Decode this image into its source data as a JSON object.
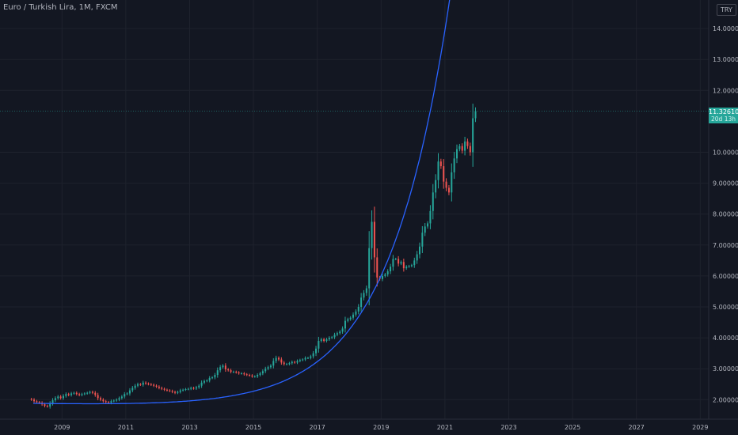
{
  "chart_title": "Euro / Turkish Lira, 1M, FXCM",
  "currency": "TRY",
  "last_price": "11.32610",
  "countdown": "20d 13h",
  "colors": {
    "background": "#131722",
    "up": "#26a69a",
    "down": "#ef5350",
    "curve": "#2962ff",
    "grid": "#1e222d",
    "text": "#b2b5be"
  },
  "chart_data": {
    "type": "candlestick",
    "title": "Euro / Turkish Lira, 1M, FXCM",
    "x_range": [
      2008,
      2029.3
    ],
    "y_range": [
      1.65,
      15.05
    ],
    "y_ticks": [
      "2.00000",
      "3.00000",
      "4.00000",
      "5.00000",
      "6.00000",
      "7.00000",
      "8.00000",
      "9.00000",
      "10.00000",
      "12.00000",
      "13.00000",
      "14.00000"
    ],
    "x_ticks": [
      "2009",
      "2011",
      "2013",
      "2015",
      "2017",
      "2019",
      "2021",
      "2023",
      "2025",
      "2027",
      "2029"
    ],
    "grid": true,
    "price_line": 11.3261,
    "monthly_closes": [
      {
        "from": 2008.0,
        "closes": [
          2.0,
          1.95,
          1.92,
          1.9,
          1.85,
          1.8,
          1.78,
          1.88,
          1.98,
          2.05,
          2.1,
          2.05
        ]
      },
      {
        "from": 2009.0,
        "closes": [
          2.12,
          2.18,
          2.15,
          2.2,
          2.22,
          2.18,
          2.15,
          2.18,
          2.2,
          2.22,
          2.25,
          2.22
        ]
      },
      {
        "from": 2010.0,
        "closes": [
          2.15,
          2.05,
          2.0,
          1.95,
          1.92,
          1.9,
          1.95,
          1.97,
          2.0,
          2.05,
          2.1,
          2.18
        ]
      },
      {
        "from": 2011.0,
        "closes": [
          2.2,
          2.3,
          2.38,
          2.45,
          2.5,
          2.48,
          2.55,
          2.52,
          2.5,
          2.48,
          2.45,
          2.42
        ]
      },
      {
        "from": 2012.0,
        "closes": [
          2.38,
          2.35,
          2.32,
          2.3,
          2.28,
          2.25,
          2.22,
          2.25,
          2.3,
          2.32,
          2.34,
          2.35
        ]
      },
      {
        "from": 2013.0,
        "closes": [
          2.38,
          2.36,
          2.4,
          2.45,
          2.55,
          2.6,
          2.62,
          2.7,
          2.72,
          2.8,
          2.95,
          3.05
        ]
      },
      {
        "from": 2014.0,
        "closes": [
          3.1,
          2.98,
          2.95,
          2.9,
          2.9,
          2.88,
          2.85,
          2.85,
          2.82,
          2.8,
          2.78,
          2.75
        ]
      },
      {
        "from": 2015.0,
        "closes": [
          2.75,
          2.8,
          2.85,
          2.92,
          3.0,
          3.05,
          3.1,
          3.25,
          3.35,
          3.3,
          3.2,
          3.15
        ]
      },
      {
        "from": 2016.0,
        "closes": [
          3.15,
          3.18,
          3.22,
          3.2,
          3.25,
          3.28,
          3.3,
          3.35,
          3.35,
          3.4,
          3.5,
          3.65
        ]
      },
      {
        "from": 2017.0,
        "closes": [
          3.9,
          3.95,
          3.9,
          3.95,
          4.0,
          4.02,
          4.1,
          4.15,
          4.2,
          4.3,
          4.55,
          4.6
        ]
      },
      {
        "from": 2018.0,
        "closes": [
          4.65,
          4.75,
          4.85,
          5.0,
          5.3,
          5.45,
          5.6,
          6.9,
          7.75,
          6.6,
          5.95,
          5.9
        ]
      },
      {
        "from": 2019.0,
        "closes": [
          6.0,
          6.05,
          6.15,
          6.3,
          6.55,
          6.55,
          6.4,
          6.45,
          6.25,
          6.3,
          6.32,
          6.35
        ]
      },
      {
        "from": 2020.0,
        "closes": [
          6.5,
          6.7,
          6.95,
          7.4,
          7.6,
          7.7,
          8.1,
          8.7,
          9.1,
          9.7,
          9.55,
          9.05
        ]
      },
      {
        "from": 2021.0,
        "closes": [
          8.85,
          8.7,
          9.35,
          9.8,
          10.1,
          10.2,
          10.05,
          10.35,
          10.2,
          10.0,
          11.1,
          11.33
        ]
      }
    ],
    "trend_curve": {
      "type": "exponential",
      "min_value": 1.87,
      "min_at": 2010.5,
      "label": ""
    }
  }
}
